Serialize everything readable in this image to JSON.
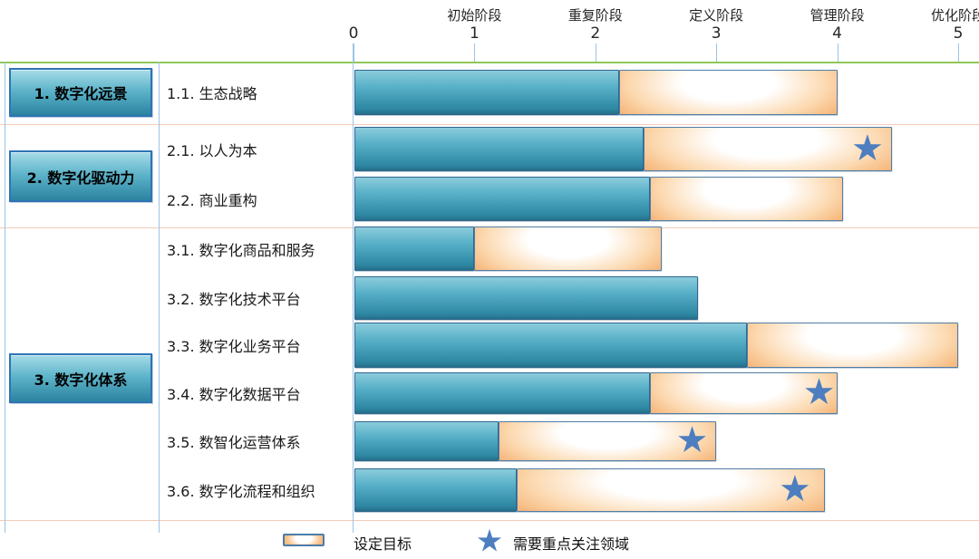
{
  "chart_data": {
    "type": "bar",
    "orientation": "horizontal",
    "title": "",
    "x_axis": {
      "min": 0,
      "max": 5,
      "ticks": [
        0,
        1,
        2,
        3,
        4,
        5
      ],
      "stage_labels": [
        {
          "value": 1,
          "label": "初始阶段"
        },
        {
          "value": 2,
          "label": "重复阶段"
        },
        {
          "value": 3,
          "label": "定义阶段"
        },
        {
          "value": 4,
          "label": "管理阶段"
        },
        {
          "value": 5,
          "label": "优化阶段"
        }
      ]
    },
    "groups": [
      {
        "label": "1. 数字化远景",
        "row_labels": [
          "1.1. 生态战略"
        ]
      },
      {
        "label": "2. 数字化驱动力",
        "row_labels": [
          "2.1. 以人为本",
          "2.2. 商业重构"
        ]
      },
      {
        "label": "3. 数字化体系",
        "row_labels": [
          "3.1. 数字化商品和服务",
          "3.2. 数字化技术平台",
          "3.3. 数字化业务平台",
          "3.4. 数字化数据平台",
          "3.5. 数智化运营体系",
          "3.6. 数字化流程和组织"
        ]
      }
    ],
    "rows": [
      {
        "group": "1. 数字化远景",
        "label": "1.1. 生态战略",
        "current": 2.2,
        "target": 4.0,
        "star": null
      },
      {
        "group": "2. 数字化驱动力",
        "label": "2.1. 以人为本",
        "current": 2.4,
        "target": 4.45,
        "star": 4.25
      },
      {
        "group": "2. 数字化驱动力",
        "label": "2.2. 商业重构",
        "current": 2.45,
        "target": 4.05,
        "star": null
      },
      {
        "group": "3. 数字化体系",
        "label": "3.1. 数字化商品和服务",
        "current": 1.0,
        "target": 2.55,
        "star": null
      },
      {
        "group": "3. 数字化体系",
        "label": "3.2. 数字化技术平台",
        "current": 2.85,
        "target": null,
        "star": null
      },
      {
        "group": "3. 数字化体系",
        "label": "3.3. 数字化业务平台",
        "current": 3.25,
        "target": 5.0,
        "star": null
      },
      {
        "group": "3. 数字化体系",
        "label": "3.4. 数字化数据平台",
        "current": 2.45,
        "target": 4.0,
        "star": 3.85
      },
      {
        "group": "3. 数字化体系",
        "label": "3.5. 数智化运营体系",
        "current": 1.2,
        "target": 3.0,
        "star": 2.8
      },
      {
        "group": "3. 数字化体系",
        "label": "3.6. 数字化流程和组织",
        "current": 1.35,
        "target": 3.9,
        "star": 3.65
      }
    ],
    "legend": {
      "target_label": "设定目标",
      "star_label": "需要重点关注领域"
    },
    "symbols": {
      "star_icon": "★"
    },
    "colors": {
      "current_bar": "#2e87a3",
      "current_bar_light": "#8bccdc",
      "target_bar_edge": "#f19e55",
      "target_bar_center": "#ffffff",
      "bar_border_blue": "#2f6690",
      "bar_border_target": "#517da8",
      "star": "#4d7ebf",
      "category_box_border": "#2e74b5",
      "axis_line_green": "#8fc857",
      "group_separator_pink": "#f4cbb9",
      "guide_line_blue": "#9dc3e6",
      "text": "#1a1a1a"
    }
  }
}
